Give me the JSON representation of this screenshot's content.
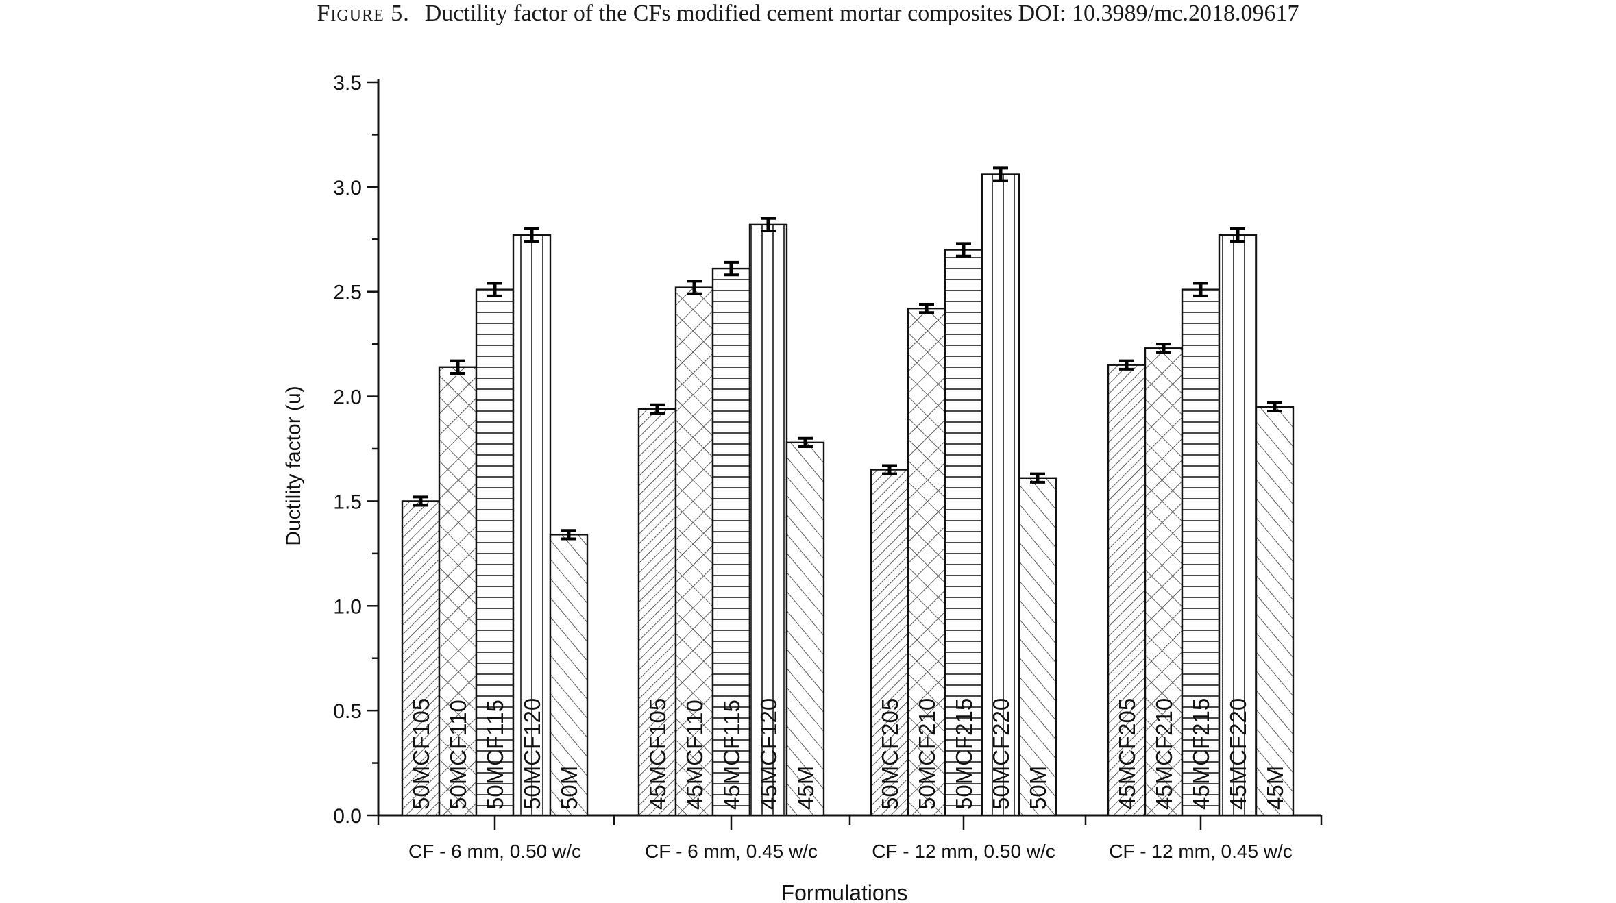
{
  "figure": {
    "label": "Figure 5.",
    "caption": "Ductility factor of the CFs modified cement mortar composites DOI: 10.3989/mc.2018.09617"
  },
  "chart_data": {
    "type": "bar",
    "xlabel": "Formulations",
    "ylabel": "Ductility factor (u)",
    "ylim": [
      0,
      3.5
    ],
    "yticks": [
      "0.0",
      "0.5",
      "1.0",
      "1.5",
      "2.0",
      "2.5",
      "3.0",
      "3.5"
    ],
    "grid": false,
    "legend": "none",
    "groups": [
      {
        "label": "CF - 6 mm, 0.50 w/c",
        "bars": [
          {
            "name": "50MCF105",
            "value": 1.5,
            "error": 0.02,
            "pattern": "diag"
          },
          {
            "name": "50MCF110",
            "value": 2.14,
            "error": 0.03,
            "pattern": "cross"
          },
          {
            "name": "50MCF115",
            "value": 2.51,
            "error": 0.03,
            "pattern": "horiz"
          },
          {
            "name": "50MCF120",
            "value": 2.77,
            "error": 0.03,
            "pattern": "vert"
          },
          {
            "name": "50M",
            "value": 1.34,
            "error": 0.02,
            "pattern": "back"
          }
        ]
      },
      {
        "label": "CF - 6 mm, 0.45 w/c",
        "bars": [
          {
            "name": "45MCF105",
            "value": 1.94,
            "error": 0.02,
            "pattern": "diag"
          },
          {
            "name": "45MCF110",
            "value": 2.52,
            "error": 0.03,
            "pattern": "cross"
          },
          {
            "name": "45MCF115",
            "value": 2.61,
            "error": 0.03,
            "pattern": "horiz"
          },
          {
            "name": "45MCF120",
            "value": 2.82,
            "error": 0.03,
            "pattern": "vert"
          },
          {
            "name": "45M",
            "value": 1.78,
            "error": 0.02,
            "pattern": "back"
          }
        ]
      },
      {
        "label": "CF - 12 mm, 0.50 w/c",
        "bars": [
          {
            "name": "50MCF205",
            "value": 1.65,
            "error": 0.02,
            "pattern": "diag"
          },
          {
            "name": "50MCF210",
            "value": 2.42,
            "error": 0.02,
            "pattern": "cross"
          },
          {
            "name": "50MCF215",
            "value": 2.7,
            "error": 0.03,
            "pattern": "horiz"
          },
          {
            "name": "50MCF220",
            "value": 3.06,
            "error": 0.03,
            "pattern": "vert"
          },
          {
            "name": "50M",
            "value": 1.61,
            "error": 0.02,
            "pattern": "back"
          }
        ]
      },
      {
        "label": "CF - 12 mm, 0.45 w/c",
        "bars": [
          {
            "name": "45MCF205",
            "value": 2.15,
            "error": 0.02,
            "pattern": "diag"
          },
          {
            "name": "45MCF210",
            "value": 2.23,
            "error": 0.02,
            "pattern": "cross"
          },
          {
            "name": "45MCF215",
            "value": 2.51,
            "error": 0.03,
            "pattern": "horiz"
          },
          {
            "name": "45MCF220",
            "value": 2.77,
            "error": 0.03,
            "pattern": "vert"
          },
          {
            "name": "45M",
            "value": 1.95,
            "error": 0.02,
            "pattern": "back"
          }
        ]
      }
    ]
  }
}
